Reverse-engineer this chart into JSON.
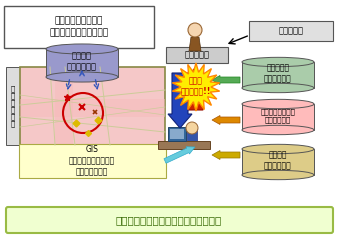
{
  "top_text": "様々な情報を迅速に\n系統化し、総合的に分析",
  "witness_label": "目撃情報等",
  "commander_label": "捜査指揮官",
  "db_modus_label": "犯罪手口\nデータベース",
  "db_suspect_label": "被疑者写真\nデータベース",
  "db_other_label": "その他の犯罪情報\nデータベース",
  "db_stats_label": "犯罪統計\nデータベース",
  "gis_label": "GIS\n（地理情報システム）\nによる分析結果",
  "crime_info_label": "犯\n罪\n関\n連\n情\n報",
  "analysis_label": "情報を\n集約・分析!!",
  "bottom_label": "的確な捜査指揮や効率的な捜査を支援",
  "db_modus_color": "#9999cc",
  "db_suspect_color": "#aaccaa",
  "db_other_color": "#ffbbbb",
  "db_stats_color": "#ddcc88",
  "map_bg": "#f5c8c8",
  "map_inner_bg": "#f0d8d0",
  "gis_box_color": "#ffffcc",
  "bottom_box_color": "#f0ffd0",
  "bottom_border_color": "#99bb44",
  "bottom_text_color": "#336600",
  "outer_bg": "#f0f0f0"
}
